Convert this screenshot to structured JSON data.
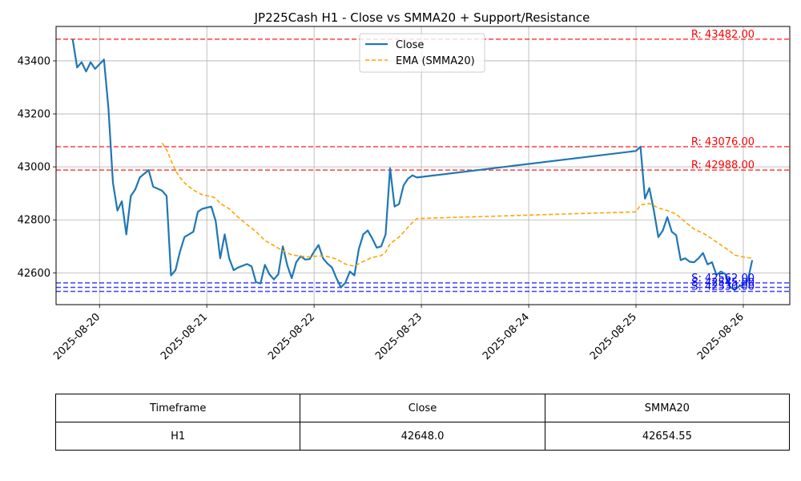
{
  "chart_data": {
    "type": "line",
    "title": "JP225Cash H1 - Close vs SMMA20 + Support/Resistance",
    "xlabel": "",
    "ylabel": "",
    "ylim": [
      42480,
      43530
    ],
    "y_ticks": [
      42600,
      42800,
      43000,
      43200,
      43400
    ],
    "x_ticks": [
      "2025-08-20",
      "2025-08-21",
      "2025-08-22",
      "2025-08-23",
      "2025-08-24",
      "2025-08-25",
      "2025-08-26"
    ],
    "xlim": [
      "2025-08-19T14:17",
      "2025-08-26T10:24"
    ],
    "grid": true,
    "legend_position": "top-center",
    "series": [
      {
        "name": "Close",
        "color": "#1f77b4",
        "style": "solid",
        "points": [
          [
            "2025-08-19T18:00",
            43482
          ],
          [
            "2025-08-19T19:00",
            43375
          ],
          [
            "2025-08-19T20:00",
            43395
          ],
          [
            "2025-08-19T21:00",
            43360
          ],
          [
            "2025-08-19T22:00",
            43395
          ],
          [
            "2025-08-19T23:00",
            43370
          ],
          [
            "2025-08-20T01:00",
            43405
          ],
          [
            "2025-08-20T02:00",
            43220
          ],
          [
            "2025-08-20T03:00",
            42940
          ],
          [
            "2025-08-20T04:00",
            42835
          ],
          [
            "2025-08-20T05:00",
            42870
          ],
          [
            "2025-08-20T06:00",
            42745
          ],
          [
            "2025-08-20T07:00",
            42890
          ],
          [
            "2025-08-20T08:00",
            42915
          ],
          [
            "2025-08-20T09:00",
            42960
          ],
          [
            "2025-08-20T11:00",
            42988
          ],
          [
            "2025-08-20T12:00",
            42925
          ],
          [
            "2025-08-20T14:00",
            42910
          ],
          [
            "2025-08-20T15:00",
            42890
          ],
          [
            "2025-08-20T16:00",
            42590
          ],
          [
            "2025-08-20T17:00",
            42610
          ],
          [
            "2025-08-20T18:00",
            42680
          ],
          [
            "2025-08-20T19:00",
            42735
          ],
          [
            "2025-08-20T21:00",
            42755
          ],
          [
            "2025-08-20T22:00",
            42830
          ],
          [
            "2025-08-20T23:00",
            42842
          ],
          [
            "2025-08-21T01:00",
            42850
          ],
          [
            "2025-08-21T02:00",
            42795
          ],
          [
            "2025-08-21T03:00",
            42655
          ],
          [
            "2025-08-21T04:00",
            42745
          ],
          [
            "2025-08-21T05:00",
            42655
          ],
          [
            "2025-08-21T06:00",
            42610
          ],
          [
            "2025-08-21T07:00",
            42620
          ],
          [
            "2025-08-21T09:00",
            42633
          ],
          [
            "2025-08-21T10:00",
            42625
          ],
          [
            "2025-08-21T11:00",
            42565
          ],
          [
            "2025-08-21T12:00",
            42560
          ],
          [
            "2025-08-21T13:00",
            42630
          ],
          [
            "2025-08-21T14:00",
            42595
          ],
          [
            "2025-08-21T15:00",
            42575
          ],
          [
            "2025-08-21T16:00",
            42595
          ],
          [
            "2025-08-21T17:00",
            42700
          ],
          [
            "2025-08-21T18:00",
            42628
          ],
          [
            "2025-08-21T19:00",
            42580
          ],
          [
            "2025-08-21T20:00",
            42640
          ],
          [
            "2025-08-21T21:00",
            42663
          ],
          [
            "2025-08-21T22:00",
            42650
          ],
          [
            "2025-08-21T23:00",
            42652
          ],
          [
            "2025-08-22T00:00",
            42680
          ],
          [
            "2025-08-22T01:00",
            42705
          ],
          [
            "2025-08-22T02:00",
            42655
          ],
          [
            "2025-08-22T03:00",
            42635
          ],
          [
            "2025-08-22T04:00",
            42620
          ],
          [
            "2025-08-22T05:00",
            42580
          ],
          [
            "2025-08-22T06:00",
            42545
          ],
          [
            "2025-08-22T07:00",
            42563
          ],
          [
            "2025-08-22T08:00",
            42605
          ],
          [
            "2025-08-22T09:00",
            42590
          ],
          [
            "2025-08-22T10:00",
            42690
          ],
          [
            "2025-08-22T11:00",
            42745
          ],
          [
            "2025-08-22T12:00",
            42760
          ],
          [
            "2025-08-22T13:00",
            42730
          ],
          [
            "2025-08-22T14:00",
            42695
          ],
          [
            "2025-08-22T15:00",
            42700
          ],
          [
            "2025-08-22T16:00",
            42745
          ],
          [
            "2025-08-22T17:00",
            42995
          ],
          [
            "2025-08-22T18:00",
            42850
          ],
          [
            "2025-08-22T19:00",
            42860
          ],
          [
            "2025-08-22T20:00",
            42930
          ],
          [
            "2025-08-22T21:00",
            42955
          ],
          [
            "2025-08-22T22:00",
            42968
          ],
          [
            "2025-08-22T23:00",
            42960
          ],
          [
            "2025-08-25T00:00",
            43060
          ],
          [
            "2025-08-25T01:00",
            43076
          ],
          [
            "2025-08-25T02:00",
            42880
          ],
          [
            "2025-08-25T03:00",
            42920
          ],
          [
            "2025-08-25T04:00",
            42835
          ],
          [
            "2025-08-25T05:00",
            42735
          ],
          [
            "2025-08-25T06:00",
            42760
          ],
          [
            "2025-08-25T07:00",
            42810
          ],
          [
            "2025-08-25T08:00",
            42755
          ],
          [
            "2025-08-25T09:00",
            42742
          ],
          [
            "2025-08-25T10:00",
            42648
          ],
          [
            "2025-08-25T11:00",
            42655
          ],
          [
            "2025-08-25T12:00",
            42642
          ],
          [
            "2025-08-25T13:00",
            42640
          ],
          [
            "2025-08-25T14:00",
            42655
          ],
          [
            "2025-08-25T15:00",
            42675
          ],
          [
            "2025-08-25T16:00",
            42632
          ],
          [
            "2025-08-25T17:00",
            42640
          ],
          [
            "2025-08-25T18:00",
            42592
          ],
          [
            "2025-08-25T19:00",
            42605
          ],
          [
            "2025-08-25T20:00",
            42595
          ],
          [
            "2025-08-25T21:00",
            42548
          ],
          [
            "2025-08-25T22:00",
            42535
          ],
          [
            "2025-08-25T23:00",
            42548
          ],
          [
            "2025-08-26T00:00",
            42556
          ],
          [
            "2025-08-26T01:00",
            42570
          ],
          [
            "2025-08-26T02:00",
            42648
          ]
        ]
      },
      {
        "name": "EMA (SMMA20)",
        "color": "#ffa500",
        "style": "dashed",
        "points": [
          [
            "2025-08-20T14:00",
            43090
          ],
          [
            "2025-08-20T15:00",
            43065
          ],
          [
            "2025-08-20T16:00",
            43025
          ],
          [
            "2025-08-20T17:00",
            42985
          ],
          [
            "2025-08-20T18:00",
            42960
          ],
          [
            "2025-08-20T19:00",
            42940
          ],
          [
            "2025-08-20T21:00",
            42912
          ],
          [
            "2025-08-20T23:00",
            42895
          ],
          [
            "2025-08-21T01:00",
            42888
          ],
          [
            "2025-08-21T02:00",
            42882
          ],
          [
            "2025-08-21T03:00",
            42862
          ],
          [
            "2025-08-21T05:00",
            42842
          ],
          [
            "2025-08-21T07:00",
            42810
          ],
          [
            "2025-08-21T09:00",
            42782
          ],
          [
            "2025-08-21T11:00",
            42756
          ],
          [
            "2025-08-21T13:00",
            42722
          ],
          [
            "2025-08-21T15:00",
            42703
          ],
          [
            "2025-08-21T17:00",
            42683
          ],
          [
            "2025-08-21T19:00",
            42668
          ],
          [
            "2025-08-21T21:00",
            42663
          ],
          [
            "2025-08-21T23:00",
            42660
          ],
          [
            "2025-08-22T01:00",
            42664
          ],
          [
            "2025-08-22T03:00",
            42662
          ],
          [
            "2025-08-22T05:00",
            42652
          ],
          [
            "2025-08-22T07:00",
            42633
          ],
          [
            "2025-08-22T09:00",
            42625
          ],
          [
            "2025-08-22T11:00",
            42643
          ],
          [
            "2025-08-22T13:00",
            42658
          ],
          [
            "2025-08-22T15:00",
            42665
          ],
          [
            "2025-08-22T16:00",
            42678
          ],
          [
            "2025-08-22T17:00",
            42710
          ],
          [
            "2025-08-22T19:00",
            42735
          ],
          [
            "2025-08-22T21:00",
            42772
          ],
          [
            "2025-08-22T22:00",
            42790
          ],
          [
            "2025-08-22T23:00",
            42805
          ],
          [
            "2025-08-25T00:00",
            42830
          ],
          [
            "2025-08-25T01:00",
            42856
          ],
          [
            "2025-08-25T03:00",
            42862
          ],
          [
            "2025-08-25T05:00",
            42845
          ],
          [
            "2025-08-25T07:00",
            42835
          ],
          [
            "2025-08-25T09:00",
            42822
          ],
          [
            "2025-08-25T11:00",
            42792
          ],
          [
            "2025-08-25T13:00",
            42765
          ],
          [
            "2025-08-25T15:00",
            42750
          ],
          [
            "2025-08-25T17:00",
            42728
          ],
          [
            "2025-08-25T19:00",
            42705
          ],
          [
            "2025-08-25T21:00",
            42682
          ],
          [
            "2025-08-25T22:00",
            42667
          ],
          [
            "2025-08-26T00:00",
            42660
          ],
          [
            "2025-08-26T02:00",
            42655
          ]
        ]
      }
    ],
    "levels": [
      {
        "kind": "resistance",
        "value": 43482,
        "label": "R: 43482.00",
        "color": "#ff0000"
      },
      {
        "kind": "resistance",
        "value": 43076,
        "label": "R: 43076.00",
        "color": "#ff0000"
      },
      {
        "kind": "resistance",
        "value": 42988,
        "label": "R: 42988.00",
        "color": "#ff0000"
      },
      {
        "kind": "support",
        "value": 42562,
        "label": "S: 42562.00",
        "color": "#0000ff"
      },
      {
        "kind": "support",
        "value": 42545,
        "label": "S: 42545.00",
        "color": "#0000ff"
      },
      {
        "kind": "support",
        "value": 42530,
        "label": "S: 42530.00",
        "color": "#0000ff"
      }
    ]
  },
  "table": {
    "headers": [
      "Timeframe",
      "Close",
      "SMMA20"
    ],
    "row": [
      "H1",
      "42648.0",
      "42654.55"
    ]
  }
}
